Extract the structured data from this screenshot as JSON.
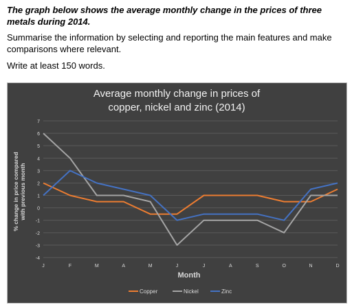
{
  "task": {
    "title": "The graph below shows the average monthly change in the prices of three metals during 2014.",
    "instruction": "Summarise the information by selecting and reporting the main features and make comparisons where relevant.",
    "word_count": "Write at least 150 words."
  },
  "chart_data": {
    "type": "line",
    "title_line1": "Average monthly change in prices of",
    "title_line2": "copper, nickel and zinc (2014)",
    "xlabel": "Month",
    "ylabel_line1": "% change in price compared",
    "ylabel_line2": "with previous month",
    "categories": [
      "J",
      "F",
      "M",
      "A",
      "M",
      "J",
      "J",
      "A",
      "S",
      "O",
      "N",
      "D"
    ],
    "yticks": [
      "7",
      "6",
      "5",
      "4",
      "3",
      "2",
      "1",
      "0",
      "-1",
      "-2",
      "-3",
      "-4"
    ],
    "ylim": [
      -4,
      7
    ],
    "grid": true,
    "legend_position": "bottom",
    "series": [
      {
        "name": "Copper",
        "color": "#ed7d31",
        "values": [
          2,
          1,
          0.5,
          0.5,
          -0.5,
          -0.5,
          1,
          1,
          1,
          0.5,
          0.5,
          1.5
        ]
      },
      {
        "name": "Nickel",
        "color": "#a5a5a5",
        "values": [
          6,
          4,
          1,
          1,
          0.5,
          -3,
          -1,
          -1,
          -1,
          -2,
          1,
          1
        ]
      },
      {
        "name": "Zinc",
        "color": "#4472c4",
        "values": [
          1,
          3,
          2,
          1.5,
          1,
          -1,
          -0.5,
          -0.5,
          -0.5,
          -1,
          1.5,
          2
        ]
      }
    ]
  }
}
